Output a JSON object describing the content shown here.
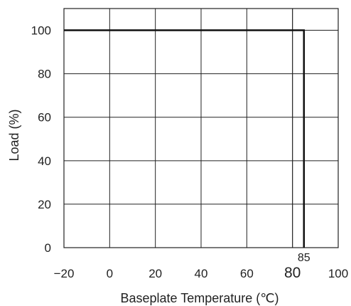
{
  "chart_data": {
    "type": "line",
    "title": "",
    "xlabel": "Baseplate Temperature (℃)",
    "ylabel": "Load (%)",
    "xlim": [
      -20,
      100
    ],
    "ylim": [
      0,
      110
    ],
    "grid": true,
    "x_ticks": [
      {
        "value": -20,
        "label": "−20"
      },
      {
        "value": 0,
        "label": "0"
      },
      {
        "value": 20,
        "label": "20"
      },
      {
        "value": 40,
        "label": "40"
      },
      {
        "value": 60,
        "label": "60"
      },
      {
        "value": 80,
        "label": "80",
        "emphasis": true
      },
      {
        "value": 100,
        "label": "100"
      }
    ],
    "y_ticks": [
      {
        "value": 0,
        "label": "0"
      },
      {
        "value": 20,
        "label": "20"
      },
      {
        "value": 40,
        "label": "40"
      },
      {
        "value": 60,
        "label": "60"
      },
      {
        "value": 80,
        "label": "80"
      },
      {
        "value": 100,
        "label": "100"
      }
    ],
    "extra_gridlines_x": [
      80
    ],
    "series": [
      {
        "x": [
          -20,
          85,
          85
        ],
        "y": [
          100,
          100,
          0
        ]
      }
    ],
    "annotations": [
      {
        "text": "85",
        "x": 85
      }
    ]
  }
}
